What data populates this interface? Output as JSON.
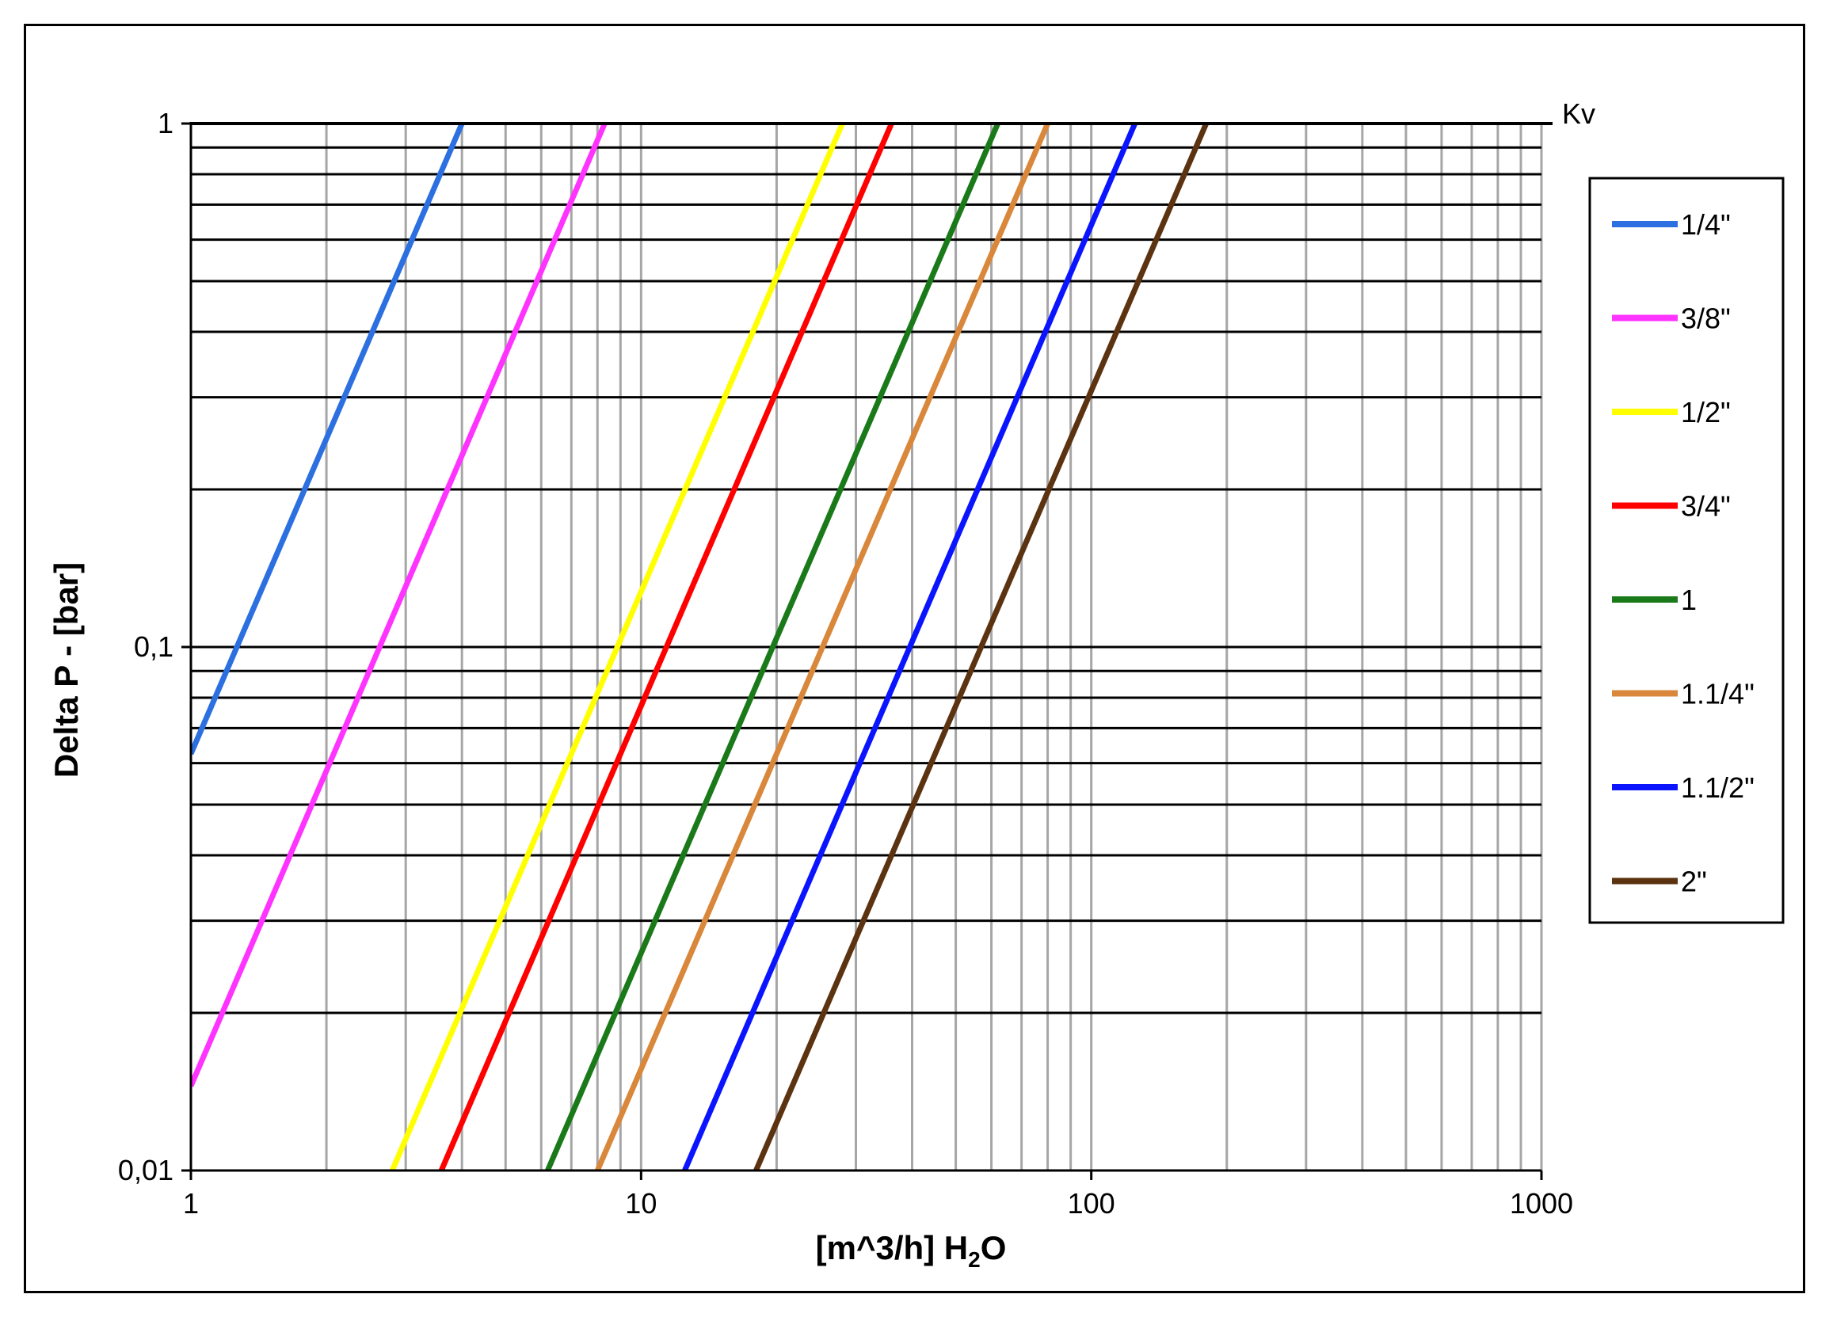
{
  "chart_data": {
    "type": "line",
    "xscale": "log",
    "yscale": "log",
    "xlim": [
      1,
      1000
    ],
    "ylim": [
      0.01,
      1
    ],
    "xticks": [
      "1",
      "10",
      "100",
      "1000"
    ],
    "yticks": [
      "0,01",
      "0,1",
      "1"
    ],
    "xlabel": {
      "main": "[m^3/h] H",
      "sub": "2",
      "tail": "O"
    },
    "ylabel": "Delta P - [bar]",
    "annotation": "Kv",
    "grid": true,
    "legend_position": "right",
    "series": [
      {
        "name": "1/4\"",
        "color": "#2c6fe0",
        "kv": 4,
        "points": [
          [
            1,
            0.0625
          ],
          [
            4,
            1
          ]
        ]
      },
      {
        "name": "3/8\"",
        "color": "#ff33ff",
        "kv": 8.3,
        "points": [
          [
            1,
            0.0145
          ],
          [
            8.3,
            1
          ]
        ]
      },
      {
        "name": "1/2\"",
        "color": "#ffff00",
        "kv": 28,
        "points": [
          [
            2.8,
            0.01
          ],
          [
            28,
            1
          ]
        ]
      },
      {
        "name": "3/4\"",
        "color": "#ff0000",
        "kv": 36,
        "points": [
          [
            3.6,
            0.01
          ],
          [
            36,
            1
          ]
        ]
      },
      {
        "name": "1",
        "color": "#1a7a1a",
        "kv": 62,
        "points": [
          [
            6.2,
            0.01
          ],
          [
            62,
            1
          ]
        ]
      },
      {
        "name": "1.1/4\"",
        "color": "#d9873a",
        "kv": 80,
        "points": [
          [
            8,
            0.01
          ],
          [
            80,
            1
          ]
        ]
      },
      {
        "name": "1.1/2\"",
        "color": "#0a14ff",
        "kv": 125,
        "points": [
          [
            12.5,
            0.01
          ],
          [
            125,
            1
          ]
        ]
      },
      {
        "name": "2\"",
        "color": "#5c3311",
        "kv": 180,
        "points": [
          [
            18,
            0.01
          ],
          [
            180,
            1
          ]
        ]
      }
    ]
  }
}
